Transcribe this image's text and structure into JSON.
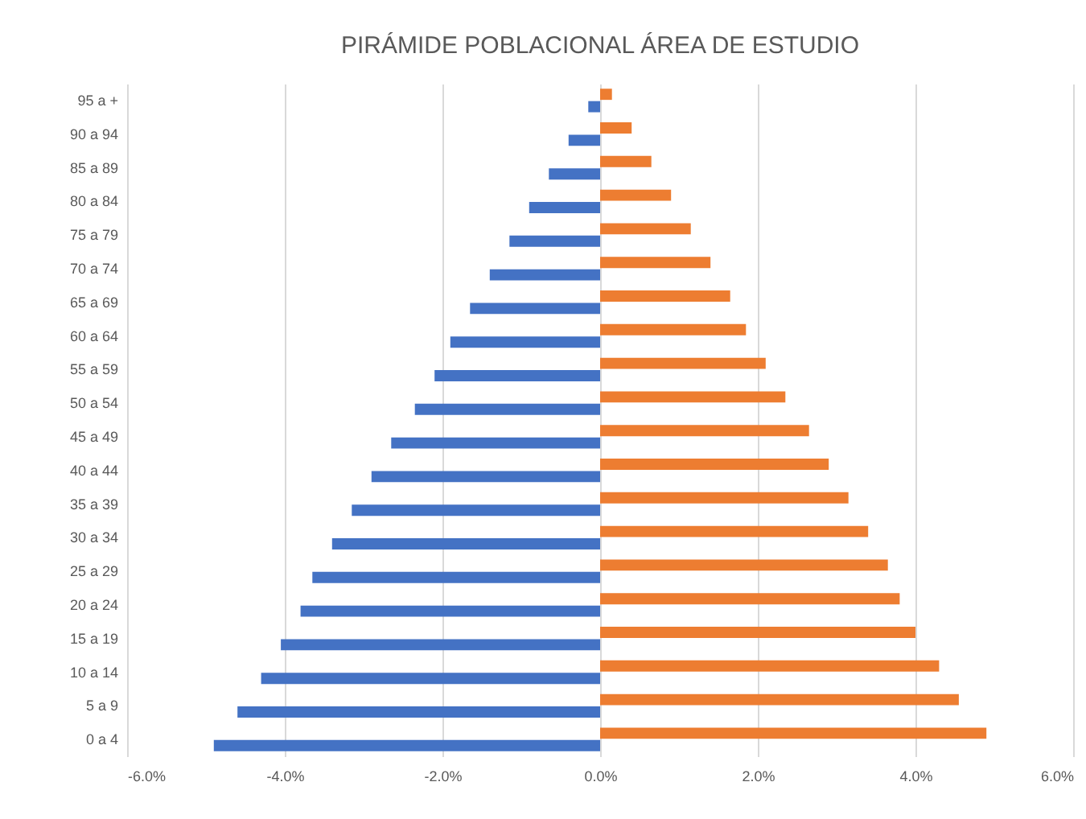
{
  "chart_data": {
    "type": "bar",
    "orientation": "horizontal",
    "title": "PIRÁMIDE POBLACIONAL ÁREA DE ESTUDIO",
    "categories": [
      "95 a +",
      "90 a 94",
      "85 a 89",
      "80 a 84",
      "75 a 79",
      "70 a 74",
      "65 a 69",
      "60 a 64",
      "55 a 59",
      "50 a 54",
      "45 a 49",
      "40 a 44",
      "35 a 39",
      "30 a 34",
      "25 a 29",
      "20 a 24",
      "15 a 19",
      "10 a 14",
      "5 a 9",
      "0 a 4"
    ],
    "series": [
      {
        "color": "#4472c4",
        "values": [
          -0.15,
          -0.4,
          -0.65,
          -0.9,
          -1.15,
          -1.4,
          -1.65,
          -1.9,
          -2.1,
          -2.35,
          -2.65,
          -2.9,
          -3.15,
          -3.4,
          -3.65,
          -3.8,
          -4.05,
          -4.3,
          -4.6,
          -4.9
        ]
      },
      {
        "color": "#ed7d31",
        "values": [
          0.15,
          0.4,
          0.65,
          0.9,
          1.15,
          1.4,
          1.65,
          1.85,
          2.1,
          2.35,
          2.65,
          2.9,
          3.15,
          3.4,
          3.65,
          3.8,
          4.0,
          4.3,
          4.55,
          4.9
        ]
      }
    ],
    "xlim": [
      -6,
      6
    ],
    "xticks": [
      {
        "value": -6,
        "label": "-6.0%"
      },
      {
        "value": -4,
        "label": "-4.0%"
      },
      {
        "value": -2,
        "label": "-2.0%"
      },
      {
        "value": 0,
        "label": "0.0%"
      },
      {
        "value": 2,
        "label": "2.0%"
      },
      {
        "value": 4,
        "label": "4.0%"
      },
      {
        "value": 6,
        "label": "6.0%"
      }
    ],
    "grid": "x"
  }
}
